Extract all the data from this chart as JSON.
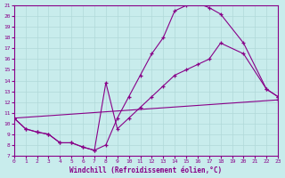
{
  "xlabel": "Windchill (Refroidissement éolien,°C)",
  "xlim": [
    0,
    23
  ],
  "ylim": [
    7,
    21
  ],
  "xticks": [
    0,
    1,
    2,
    3,
    4,
    5,
    6,
    7,
    8,
    9,
    10,
    11,
    12,
    13,
    14,
    15,
    16,
    17,
    18,
    19,
    20,
    21,
    22,
    23
  ],
  "yticks": [
    7,
    8,
    9,
    10,
    11,
    12,
    13,
    14,
    15,
    16,
    17,
    18,
    19,
    20,
    21
  ],
  "bg_color": "#c8ecec",
  "line_color": "#880088",
  "grid_color": "#b0d8d8",
  "line1_x": [
    0,
    1,
    2,
    3,
    4,
    5,
    6,
    7,
    8,
    9,
    10,
    11,
    12,
    13,
    14,
    15,
    16,
    17,
    18,
    20,
    22,
    23
  ],
  "line1_y": [
    10.5,
    9.5,
    9.2,
    9.0,
    8.2,
    8.2,
    7.8,
    7.5,
    8.0,
    10.5,
    12.5,
    14.5,
    16.5,
    18.0,
    20.5,
    21.0,
    21.2,
    20.8,
    20.2,
    17.5,
    13.2,
    12.5
  ],
  "line2_x": [
    0,
    1,
    2,
    3,
    4,
    5,
    6,
    7,
    8,
    9,
    10,
    11,
    12,
    13,
    14,
    15,
    16,
    17,
    18,
    20,
    22,
    23
  ],
  "line2_y": [
    10.5,
    9.5,
    9.2,
    9.0,
    8.2,
    8.2,
    7.8,
    7.5,
    13.8,
    9.5,
    10.5,
    11.5,
    12.5,
    13.5,
    14.5,
    15.0,
    15.5,
    16.0,
    17.5,
    16.5,
    13.2,
    12.5
  ],
  "line3_x": [
    0,
    23
  ],
  "line3_y": [
    10.5,
    12.2
  ]
}
